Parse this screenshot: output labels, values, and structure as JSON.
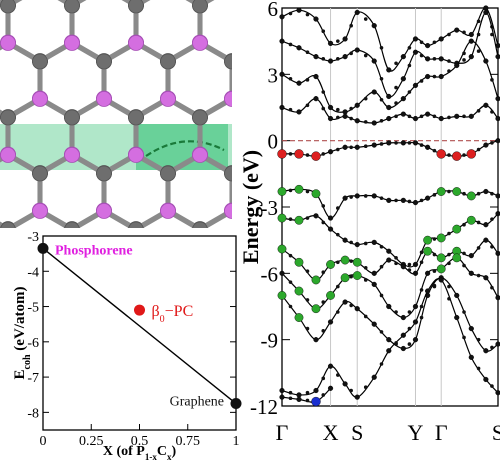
{
  "structure_panel": {
    "atom_colors": {
      "phosphorus": "#d46ee0",
      "carbon": "#6e6e6e"
    },
    "highlight_color": "#2fbf71"
  },
  "chart_data": [
    {
      "type": "scatter",
      "ylabel_main": "E",
      "ylabel_sub": "coh",
      "ylabel_unit": " (eV/atom)",
      "xlabel_pre": "X (of P",
      "xlabel_sub1": "1-x",
      "xlabel_mid": "C",
      "xlabel_sub2": "x",
      "xlabel_post": ")",
      "xlim": [
        0,
        1
      ],
      "ylim": [
        -8.5,
        -3
      ],
      "xticks": [
        0,
        0.25,
        0.5,
        0.75,
        1
      ],
      "xtick_labels": [
        "0",
        "0.25",
        "0.5",
        "0.75",
        "1"
      ],
      "yticks": [
        -3,
        -4,
        -5,
        -6,
        -7,
        -8
      ],
      "ytick_labels": [
        "-3",
        "-4",
        "-5",
        "-6",
        "-7",
        "-8"
      ],
      "points": [
        {
          "x": 0,
          "y": -3.35,
          "label": "Phosphorene",
          "color": "#111111",
          "label_color": "#e020e0"
        },
        {
          "x": 0.5,
          "y": -5.1,
          "label_main": "β",
          "label_sub": "0",
          "label_rest": "−PC",
          "color": "#e01818",
          "label_color": "#e01818"
        },
        {
          "x": 1,
          "y": -7.75,
          "label": "Graphene",
          "color": "#111111",
          "label_color": "#111111"
        }
      ],
      "line": {
        "x": [
          0,
          1
        ],
        "y": [
          -3.35,
          -7.75
        ],
        "color": "#000000"
      }
    },
    {
      "type": "line",
      "ylabel": "Energy (eV)",
      "ylim": [
        -12,
        6
      ],
      "yticks": [
        6,
        3,
        0,
        -3,
        -6,
        -9,
        -12
      ],
      "ytick_labels": [
        "6",
        "3",
        "0",
        "-3",
        "-6",
        "-9",
        "-12"
      ],
      "kpoints": [
        "Γ",
        "X",
        "S",
        "Y",
        "Γ",
        "S"
      ],
      "kpoint_positions": [
        0,
        1,
        1.55,
        2.75,
        3.28,
        4.45
      ],
      "fermi_level": 0,
      "fermi_color": "#b05050",
      "marker_colors": {
        "black": "#111111",
        "red": "#dd2020",
        "green": "#2ca82c",
        "blue": "#1a2fd0"
      },
      "bands": [
        {
          "k": [
            0,
            0.35,
            0.7,
            1,
            1.3,
            1.55,
            1.9,
            2.2,
            2.5,
            2.75,
            3.0,
            3.28,
            3.6,
            3.9,
            4.2,
            4.45
          ],
          "E": [
            5.6,
            5.9,
            5.5,
            4.4,
            4.6,
            5.8,
            5.2,
            3.2,
            3.8,
            4.6,
            4.3,
            4.6,
            5.0,
            4.8,
            6.0,
            4.3
          ]
        },
        {
          "k": [
            0,
            0.35,
            0.7,
            1,
            1.3,
            1.55,
            1.9,
            2.2,
            2.5,
            2.75,
            3.0,
            3.28,
            3.6,
            3.9,
            4.2,
            4.45
          ],
          "E": [
            4.5,
            4.2,
            3.8,
            3.6,
            3.8,
            4.1,
            3.6,
            2.0,
            2.8,
            4.0,
            3.7,
            3.7,
            3.5,
            3.8,
            5.8,
            3.8
          ]
        },
        {
          "k": [
            0,
            0.35,
            0.7,
            1,
            1.3,
            1.55,
            1.9,
            2.2,
            2.5,
            2.75,
            3.0,
            3.28,
            3.6,
            3.9,
            4.2,
            4.45
          ],
          "E": [
            3.0,
            2.6,
            2.9,
            1.5,
            1.3,
            1.6,
            2.2,
            1.5,
            1.9,
            2.5,
            2.9,
            2.9,
            3.4,
            4.5,
            3.6,
            1.9
          ]
        },
        {
          "k": [
            0,
            0.35,
            0.7,
            1,
            1.3,
            1.55,
            1.9,
            2.2,
            2.5,
            2.75,
            3.0,
            3.28,
            3.6,
            3.9,
            4.2,
            4.45
          ],
          "E": [
            1.5,
            1.3,
            1.9,
            1.0,
            1.1,
            0.9,
            0.8,
            1.0,
            1.2,
            1.0,
            1.2,
            1.0,
            1.1,
            1.1,
            1.6,
            1.0
          ]
        },
        {
          "k": [
            0,
            0.35,
            0.7,
            1,
            1.3,
            1.55,
            1.9,
            2.2,
            2.5,
            2.75,
            3.0,
            3.28,
            3.6,
            3.9,
            4.2,
            4.45
          ],
          "E": [
            -0.6,
            -0.6,
            -0.7,
            -0.5,
            -0.3,
            -0.3,
            -0.2,
            -0.1,
            -0.1,
            -0.1,
            -0.3,
            -0.6,
            -0.7,
            -0.6,
            -0.2,
            0.0
          ],
          "red": [
            0,
            1,
            2,
            11,
            12,
            13
          ]
        },
        {
          "k": [
            0,
            0.35,
            0.7,
            1,
            1.3,
            1.55,
            1.9,
            2.2,
            2.5,
            2.75,
            3.0,
            3.28,
            3.6,
            3.9,
            4.2,
            4.45
          ],
          "E": [
            -2.3,
            -2.2,
            -2.4,
            -3.5,
            -2.6,
            -2.5,
            -2.5,
            -2.7,
            -2.7,
            -2.8,
            -2.6,
            -2.3,
            -2.3,
            -2.5,
            -2.3,
            -2.5
          ],
          "green": [
            0,
            1,
            2,
            11,
            12,
            13
          ]
        },
        {
          "k": [
            0,
            0.35,
            0.7,
            1,
            1.3,
            1.55,
            1.9,
            2.2,
            2.5,
            2.75,
            3.0,
            3.28,
            3.6,
            3.9,
            4.2,
            4.45
          ],
          "E": [
            -3.5,
            -3.6,
            -3.4,
            -4.0,
            -4.5,
            -4.7,
            -4.6,
            -5.0,
            -5.6,
            -5.6,
            -4.5,
            -4.4,
            -4.0,
            -3.6,
            -3.8,
            -3.3
          ],
          "green": [
            0,
            1,
            10,
            11,
            12,
            13
          ]
        },
        {
          "k": [
            0,
            0.35,
            0.7,
            1,
            1.3,
            1.55,
            1.9,
            2.2,
            2.5,
            2.75,
            3.0,
            3.28,
            3.6,
            3.9,
            4.2,
            4.45
          ],
          "E": [
            -4.9,
            -5.5,
            -6.3,
            -5.6,
            -5.4,
            -5.5,
            -6.0,
            -5.4,
            -5.7,
            -6.0,
            -5.0,
            -5.3,
            -5.0,
            -5.2,
            -4.5,
            -5.1
          ],
          "green": [
            0,
            1,
            2,
            3,
            4,
            5,
            10,
            11,
            12
          ]
        },
        {
          "k": [
            0,
            0.35,
            0.7,
            1,
            1.3,
            1.55,
            1.9,
            2.2,
            2.5,
            2.75,
            3.0,
            3.28,
            3.6,
            3.9,
            4.2,
            4.45
          ],
          "E": [
            -6.0,
            -6.8,
            -7.6,
            -7.0,
            -6.2,
            -6.1,
            -6.5,
            -7.5,
            -8.0,
            -7.5,
            -6.0,
            -5.8,
            -5.3,
            -6.0,
            -6.2,
            -7.1
          ],
          "green": [
            1,
            2,
            3,
            4,
            5,
            11,
            12
          ]
        },
        {
          "k": [
            0,
            0.35,
            0.7,
            1,
            1.3,
            1.55,
            1.9,
            2.2,
            2.5,
            2.75,
            3.0,
            3.28,
            3.6,
            3.9,
            4.2,
            4.45
          ],
          "E": [
            -7.0,
            -8.0,
            -9.0,
            -8.2,
            -7.3,
            -7.6,
            -8.3,
            -9.0,
            -9.4,
            -9.0,
            -7.0,
            -6.2,
            -7.0,
            -8.5,
            -9.5,
            -9.2
          ],
          "green": [
            0,
            1
          ]
        },
        {
          "k": [
            0,
            0.35,
            0.7,
            1,
            1.3,
            1.55,
            1.9,
            2.2,
            2.5,
            2.75,
            3.0,
            3.28,
            3.6,
            3.9,
            4.2,
            4.45
          ],
          "E": [
            -11.3,
            -11.5,
            -11.3,
            -10.2,
            -11.0,
            -11.6,
            -10.7,
            -9.5,
            -8.8,
            -8.2,
            -6.8,
            -6.3,
            -8.0,
            -9.8,
            -10.8,
            -11.4
          ]
        },
        {
          "k": [
            0,
            0.35,
            0.7,
            1
          ],
          "E": [
            -11.6,
            -11.7,
            -11.8,
            -11.2
          ],
          "blue": [
            2
          ]
        }
      ]
    }
  ]
}
